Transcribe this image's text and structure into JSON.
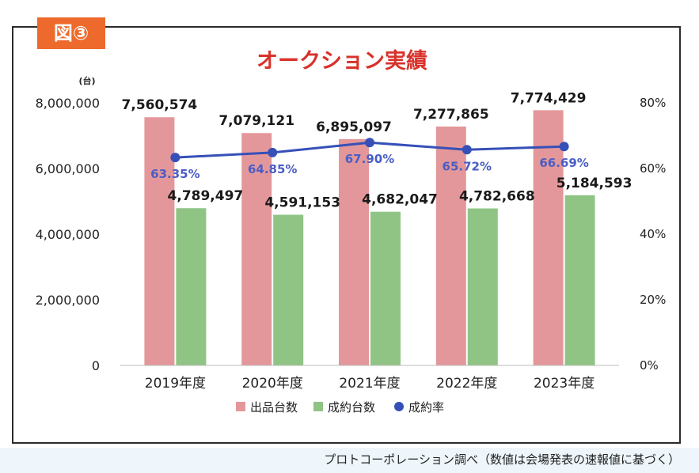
{
  "figure_label": "図③",
  "source_note": "プロトコーポレーション調べ（数値は会場発表の速報値に基づく）",
  "colors": {
    "listed_bar": "#e4979a",
    "contracted_bar": "#8fc485",
    "rate_line": "#3650b8",
    "rate_label": "#4a5ec4",
    "title": "#d8322b",
    "figure_label_bg": "#ee6a2c"
  },
  "chart_data": {
    "type": "bar",
    "title": "オークション実績",
    "ylabel": "(台)",
    "categories": [
      "2019年度",
      "2020年度",
      "2021年度",
      "2022年度",
      "2023年度"
    ],
    "series": [
      {
        "name": "出品台数",
        "type": "bar",
        "axis": "left",
        "values": [
          7560574,
          7079121,
          6895097,
          7277865,
          7774429
        ],
        "labels": [
          "7,560,574",
          "7,079,121",
          "6,895,097",
          "7,277,865",
          "7,774,429"
        ]
      },
      {
        "name": "成約台数",
        "type": "bar",
        "axis": "left",
        "values": [
          4789497,
          4591153,
          4682047,
          4782668,
          5184593
        ],
        "labels": [
          "4,789,497",
          "4,591,153",
          "4,682,047",
          "4,782,668",
          "5,184,593"
        ]
      },
      {
        "name": "成約率",
        "type": "line",
        "axis": "right",
        "values": [
          63.35,
          64.85,
          67.9,
          65.72,
          66.69
        ],
        "labels": [
          "63.35%",
          "64.85%",
          "67.90%",
          "65.72%",
          "66.69%"
        ]
      }
    ],
    "ylim": [
      0,
      8000000
    ],
    "y_ticks": [
      "0",
      "2,000,000",
      "4,000,000",
      "6,000,000",
      "8,000,000"
    ],
    "y2lim": [
      0,
      80
    ],
    "y2_ticks": [
      "0%",
      "20%",
      "40%",
      "60%",
      "80%"
    ],
    "grid": false,
    "legend_position": "bottom"
  }
}
